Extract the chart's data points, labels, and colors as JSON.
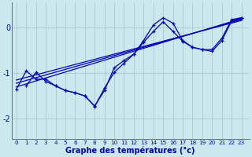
{
  "background_color": "#cce8ef",
  "grid_color": "#aec8d0",
  "line_color": "#0000bb",
  "xlabel": "Graphe des températures (°c)",
  "xlabel_fontsize": 7,
  "ytick_labels": [
    "0",
    "-1",
    "-2"
  ],
  "ytick_vals": [
    0,
    -1,
    -2
  ],
  "xtick_vals": [
    0,
    1,
    2,
    3,
    4,
    5,
    6,
    7,
    8,
    9,
    10,
    11,
    12,
    13,
    14,
    15,
    16,
    17,
    18,
    19,
    20,
    21,
    22,
    23
  ],
  "xlim": [
    -0.5,
    23.8
  ],
  "ylim": [
    -2.45,
    0.55
  ],
  "curve1_x": [
    1,
    2,
    3,
    4,
    5,
    6,
    7,
    8,
    9,
    10,
    11,
    12,
    13,
    14,
    15,
    16,
    17,
    18,
    19,
    20,
    21,
    22,
    23
  ],
  "curve1_y": [
    -1.28,
    -0.98,
    -1.18,
    -1.28,
    -1.38,
    -1.43,
    -1.5,
    -1.72,
    -1.38,
    -0.88,
    -0.72,
    -0.58,
    -0.32,
    -0.08,
    0.13,
    -0.08,
    -0.3,
    -0.43,
    -0.48,
    -0.52,
    -0.28,
    0.15,
    0.22
  ],
  "curve2_x": [
    0,
    1,
    2,
    3,
    4,
    5,
    6,
    7,
    8,
    9,
    10,
    11,
    12,
    13,
    14,
    15,
    16,
    17,
    18,
    19,
    20,
    21,
    22,
    23
  ],
  "curve2_y": [
    -1.35,
    -0.95,
    -1.13,
    -1.13,
    -1.28,
    -1.38,
    -1.43,
    -1.5,
    -1.73,
    -1.33,
    -0.98,
    -0.78,
    -0.58,
    -0.28,
    0.06,
    0.22,
    0.1,
    -0.28,
    -0.43,
    -0.48,
    -0.48,
    -0.23,
    0.18,
    0.22
  ],
  "line1_x": [
    0,
    23
  ],
  "line1_y": [
    -1.3,
    0.2
  ],
  "line2_x": [
    0,
    23
  ],
  "line2_y": [
    -1.22,
    0.18
  ],
  "line3_x": [
    0,
    23
  ],
  "line3_y": [
    -1.15,
    0.16
  ]
}
